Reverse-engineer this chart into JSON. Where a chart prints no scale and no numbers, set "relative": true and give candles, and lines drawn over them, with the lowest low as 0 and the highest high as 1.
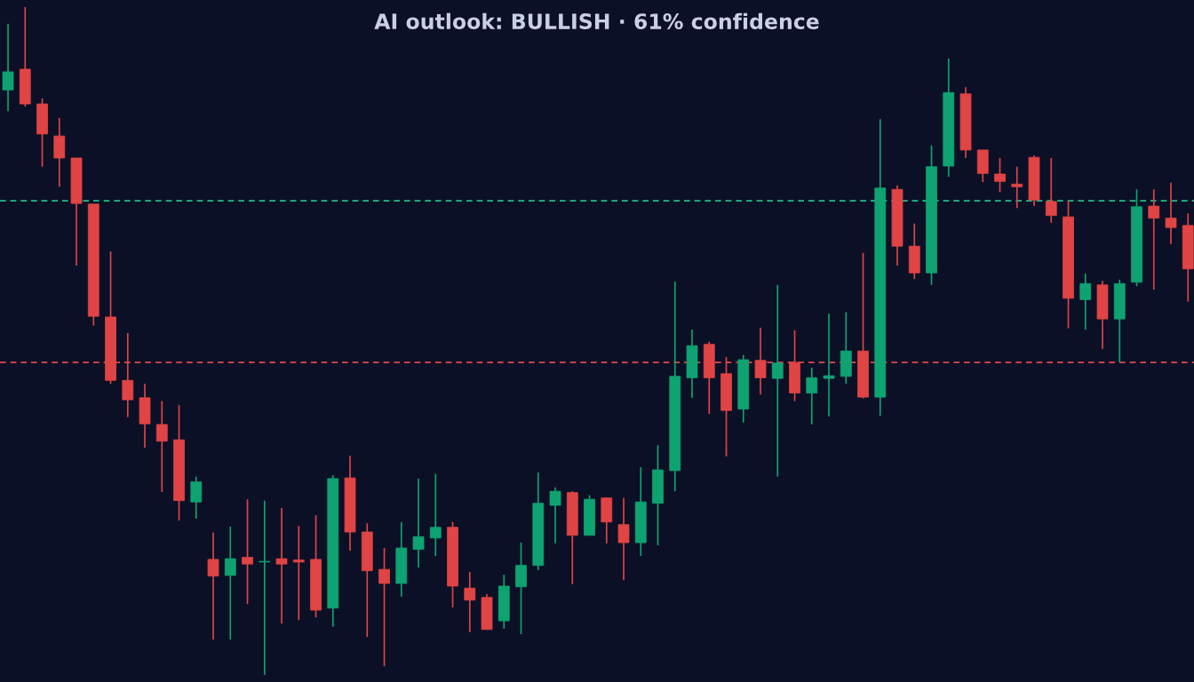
{
  "chart_data": {
    "type": "candlestick",
    "title": "AI outlook: BULLISH · 61% confidence",
    "relative": true,
    "categories": [
      null,
      null,
      null,
      null,
      null,
      null,
      null,
      null,
      null,
      null,
      null,
      null,
      null,
      null,
      null,
      null,
      null,
      null,
      null,
      null,
      null,
      null,
      null,
      null,
      null,
      null,
      null,
      null,
      null,
      null,
      null,
      null,
      null,
      null,
      null,
      null,
      null,
      null,
      null,
      null,
      null,
      null,
      null,
      null,
      null,
      null,
      null,
      null,
      null,
      null,
      null,
      null,
      null,
      null,
      null,
      null,
      null,
      null,
      null,
      null,
      null,
      null,
      null,
      null,
      null,
      null,
      null,
      null,
      null,
      null
    ],
    "series": [
      {
        "colors": [
          "#0ea371",
          "#e04444",
          "#e04444",
          "#e04444",
          "#e04444",
          "#e04444",
          "#e04444",
          "#e04444",
          "#e04444",
          "#e04444",
          "#e04444",
          "#0ea371",
          "#e04444",
          "#0ea371",
          "#e04444",
          "#0ea371",
          "#e04444",
          "#e04444",
          "#e04444",
          "#0ea371",
          "#e04444",
          "#e04444",
          "#e04444",
          "#0ea371",
          "#0ea371",
          "#0ea371",
          "#e04444",
          "#e04444",
          "#e04444",
          "#0ea371",
          "#0ea371",
          "#0ea371",
          "#0ea371",
          "#e04444",
          "#0ea371",
          "#e04444",
          "#e04444",
          "#0ea371",
          "#0ea371",
          "#0ea371",
          "#0ea371",
          "#e04444",
          "#e04444",
          "#0ea371",
          "#e04444",
          "#0ea371",
          "#e04444",
          "#0ea371",
          "#0ea371",
          "#0ea371",
          "#e04444",
          "#0ea371",
          "#e04444",
          "#e04444",
          "#0ea371",
          "#0ea371",
          "#e04444",
          "#e04444",
          "#e04444",
          "#e04444",
          "#e04444",
          "#e04444",
          "#e04444",
          "#0ea371",
          "#e04444",
          "#0ea371",
          "#0ea371",
          "#e04444",
          "#e04444",
          "#e04444"
        ],
        "ohlc": [
          [
            0.876,
            0.975,
            0.844,
            0.903
          ],
          [
            0.907,
            1.0,
            0.851,
            0.855
          ],
          [
            0.855,
            0.863,
            0.761,
            0.81
          ],
          [
            0.807,
            0.834,
            0.731,
            0.774
          ],
          [
            0.774,
            0.774,
            0.613,
            0.706
          ],
          [
            0.705,
            0.705,
            0.523,
            0.537
          ],
          [
            0.536,
            0.634,
            0.436,
            0.441
          ],
          [
            0.441,
            0.512,
            0.386,
            0.412
          ],
          [
            0.415,
            0.436,
            0.34,
            0.376
          ],
          [
            0.375,
            0.41,
            0.274,
            0.35
          ],
          [
            0.352,
            0.404,
            0.231,
            0.261
          ],
          [
            0.259,
            0.297,
            0.234,
            0.289
          ],
          [
            0.173,
            0.213,
            0.053,
            0.148
          ],
          [
            0.149,
            0.222,
            0.053,
            0.174
          ],
          [
            0.176,
            0.263,
            0.106,
            0.166
          ],
          [
            0.169,
            0.261,
            0.0,
            0.17
          ],
          [
            0.174,
            0.25,
            0.077,
            0.166
          ],
          [
            0.172,
            0.223,
            0.082,
            0.169
          ],
          [
            0.173,
            0.239,
            0.086,
            0.097
          ],
          [
            0.1,
            0.299,
            0.072,
            0.294
          ],
          [
            0.295,
            0.328,
            0.186,
            0.214
          ],
          [
            0.214,
            0.227,
            0.057,
            0.156
          ],
          [
            0.158,
            0.19,
            0.013,
            0.137
          ],
          [
            0.137,
            0.229,
            0.117,
            0.19
          ],
          [
            0.188,
            0.294,
            0.161,
            0.207
          ],
          [
            0.205,
            0.301,
            0.178,
            0.221
          ],
          [
            0.221,
            0.229,
            0.101,
            0.133
          ],
          [
            0.13,
            0.154,
            0.064,
            0.112
          ],
          [
            0.116,
            0.121,
            0.068,
            0.068
          ],
          [
            0.081,
            0.15,
            0.069,
            0.133
          ],
          [
            0.132,
            0.198,
            0.061,
            0.164
          ],
          [
            0.164,
            0.303,
            0.157,
            0.257
          ],
          [
            0.254,
            0.281,
            0.197,
            0.275
          ],
          [
            0.273,
            0.275,
            0.136,
            0.209
          ],
          [
            0.209,
            0.269,
            0.209,
            0.263
          ],
          [
            0.265,
            0.266,
            0.197,
            0.229
          ],
          [
            0.225,
            0.265,
            0.142,
            0.198
          ],
          [
            0.198,
            0.311,
            0.178,
            0.259
          ],
          [
            0.257,
            0.344,
            0.194,
            0.307
          ],
          [
            0.306,
            0.589,
            0.275,
            0.447
          ],
          [
            0.445,
            0.517,
            0.415,
            0.493
          ],
          [
            0.495,
            0.499,
            0.391,
            0.445
          ],
          [
            0.451,
            0.476,
            0.327,
            0.396
          ],
          [
            0.398,
            0.479,
            0.378,
            0.472
          ],
          [
            0.471,
            0.52,
            0.42,
            0.445
          ],
          [
            0.444,
            0.584,
            0.297,
            0.467
          ],
          [
            0.468,
            0.516,
            0.41,
            0.422
          ],
          [
            0.422,
            0.46,
            0.375,
            0.445
          ],
          [
            0.444,
            0.541,
            0.387,
            0.448
          ],
          [
            0.447,
            0.543,
            0.436,
            0.485
          ],
          [
            0.485,
            0.632,
            0.414,
            0.416
          ],
          [
            0.416,
            0.832,
            0.388,
            0.729
          ],
          [
            0.727,
            0.733,
            0.613,
            0.642
          ],
          [
            0.642,
            0.676,
            0.593,
            0.602
          ],
          [
            0.602,
            0.793,
            0.584,
            0.761
          ],
          [
            0.762,
            0.923,
            0.746,
            0.872
          ],
          [
            0.87,
            0.88,
            0.774,
            0.786
          ],
          [
            0.786,
            0.786,
            0.738,
            0.751
          ],
          [
            0.75,
            0.774,
            0.723,
            0.739
          ],
          [
            0.735,
            0.761,
            0.699,
            0.731
          ],
          [
            0.775,
            0.778,
            0.702,
            0.711
          ],
          [
            0.709,
            0.774,
            0.677,
            0.688
          ],
          [
            0.686,
            0.71,
            0.519,
            0.564
          ],
          [
            0.562,
            0.601,
            0.517,
            0.586
          ],
          [
            0.584,
            0.59,
            0.488,
            0.533
          ],
          [
            0.533,
            0.592,
            0.468,
            0.586
          ],
          [
            0.588,
            0.727,
            0.582,
            0.701
          ],
          [
            0.702,
            0.727,
            0.577,
            0.684
          ],
          [
            0.684,
            0.737,
            0.645,
            0.67
          ],
          [
            0.673,
            0.691,
            0.559,
            0.608
          ]
        ]
      }
    ],
    "ref_lines": [
      {
        "axis": "y",
        "value": 0.71,
        "label": null,
        "color": "#1fbf8a",
        "line_style": "dashed"
      },
      {
        "axis": "y",
        "value": 0.468,
        "label": null,
        "color": "#e04848",
        "line_style": "dashed"
      }
    ],
    "grid": false,
    "legend": false
  }
}
